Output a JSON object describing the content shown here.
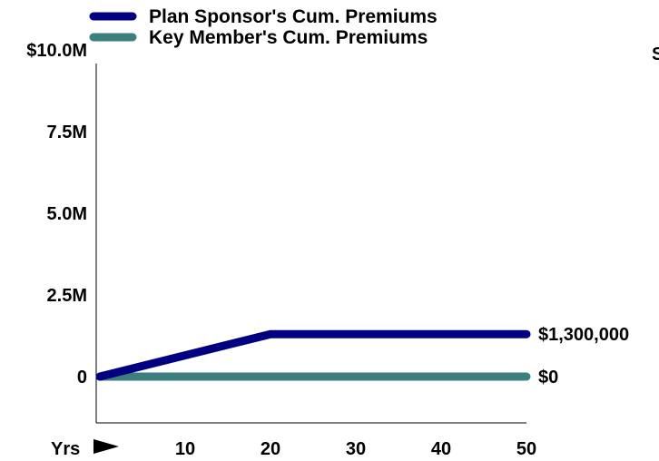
{
  "chart_data": {
    "type": "line",
    "x": [
      0,
      20,
      50
    ],
    "xlabel": "Yrs",
    "xticks": [
      10,
      20,
      30,
      40,
      50
    ],
    "xlim": [
      0,
      50
    ],
    "ylim": [
      0,
      10000000
    ],
    "yticks": [
      {
        "value": 0,
        "label": "0"
      },
      {
        "value": 2500000,
        "label": "2.5M"
      },
      {
        "value": 5000000,
        "label": "5.0M"
      },
      {
        "value": 7500000,
        "label": "7.5M"
      },
      {
        "value": 10000000,
        "label": "$10.0M"
      }
    ],
    "series": [
      {
        "name": "Plan Sponsor's Cum. Premiums",
        "values": [
          0,
          1300000,
          1300000
        ],
        "color": "#000080",
        "end_label": "$1,300,000"
      },
      {
        "name": "Key Member's Cum. Premiums",
        "values": [
          0,
          0,
          0
        ],
        "color": "#3d7f7f",
        "end_label": "$0"
      }
    ],
    "legend_position": "top",
    "grid": false,
    "cropped_right_edge_text": "S"
  }
}
